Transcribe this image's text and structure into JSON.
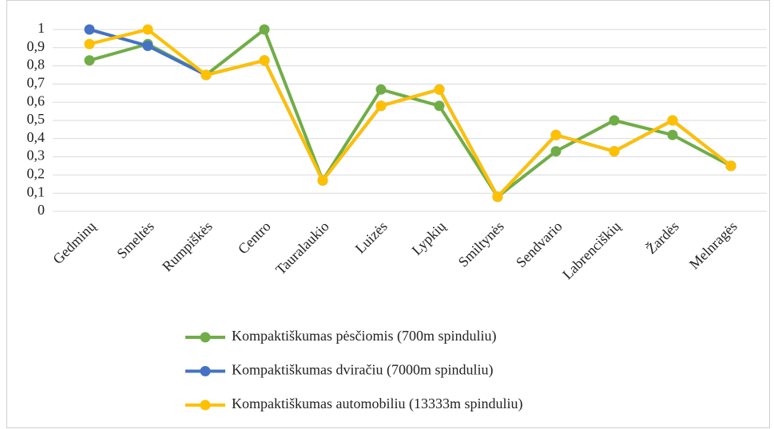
{
  "chart_data": {
    "type": "line",
    "categories": [
      "Gedminų",
      "Smeltės",
      "Rumpiškės",
      "Centro",
      "Tauralaukio",
      "Luizės",
      "Lypkių",
      "Smiltynės",
      "Sendvario",
      "Labrenciškių",
      "Žardės",
      "Melnragės"
    ],
    "series": [
      {
        "name": "Kompaktiškumas pėsčiomis (700m spinduliu)",
        "color": "#70ad47",
        "values": [
          0.83,
          0.92,
          0.75,
          1,
          0.17,
          0.67,
          0.58,
          0.08,
          0.33,
          0.5,
          0.42,
          0.25
        ]
      },
      {
        "name": "Kompaktiškumas dviračiu (7000m spinduliu)",
        "color": "#4472c4",
        "values": [
          1,
          0.91,
          0.75,
          0.83,
          0.17,
          0.58,
          0.67,
          0.08,
          0.42,
          0.33,
          0.5,
          0.25
        ]
      },
      {
        "name": "Kompaktiškumas automobiliu (13333m spinduliu)",
        "color": "#ffc000",
        "values": [
          0.92,
          1,
          0.75,
          0.83,
          0.17,
          0.58,
          0.67,
          0.08,
          0.42,
          0.33,
          0.5,
          0.25
        ]
      }
    ],
    "ylim": [
      0,
      1
    ],
    "yticks": [
      0,
      {
        "value": 0.1,
        "label": "0,1"
      },
      {
        "value": 0.2,
        "label": "0,2"
      },
      {
        "value": 0.3,
        "label": "0,3"
      },
      {
        "value": 0.4,
        "label": "0,4"
      },
      {
        "value": 0.5,
        "label": "0,5"
      },
      {
        "value": 0.6,
        "label": "0,6"
      },
      {
        "value": 0.7,
        "label": "0,7"
      },
      {
        "value": 0.8,
        "label": "0,8"
      },
      {
        "value": 0.9,
        "label": "0,9"
      },
      1
    ],
    "grid": true,
    "legend": "bottom"
  }
}
